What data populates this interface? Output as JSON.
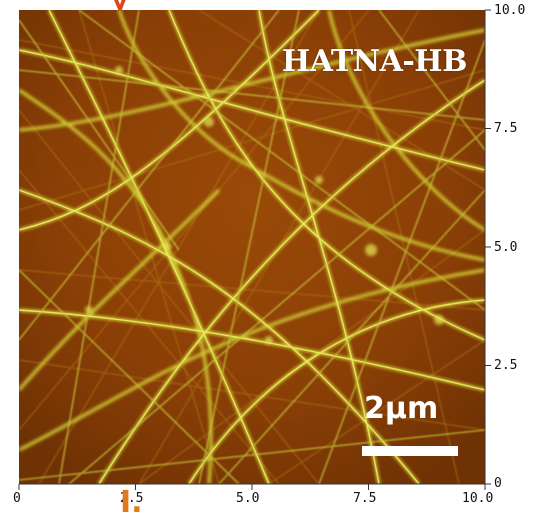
{
  "image": {
    "sample_label": "HATNA-HB",
    "scale_bar_label": "2μm",
    "colors": {
      "background": "#8a3f06",
      "fiber": "#e2e63d",
      "scale_text": "#ffffff",
      "fragment_top": "#e0431b",
      "fragment_bottom": "#e07a1b"
    }
  },
  "axes": {
    "x_ticks": [
      "0",
      "2.5",
      "5.0",
      "7.5",
      "10.0"
    ],
    "y_ticks": [
      "0",
      "2.5",
      "5.0",
      "7.5",
      "10.0"
    ]
  },
  "fragments": {
    "top_text": "y",
    "bottom_text": "I."
  }
}
